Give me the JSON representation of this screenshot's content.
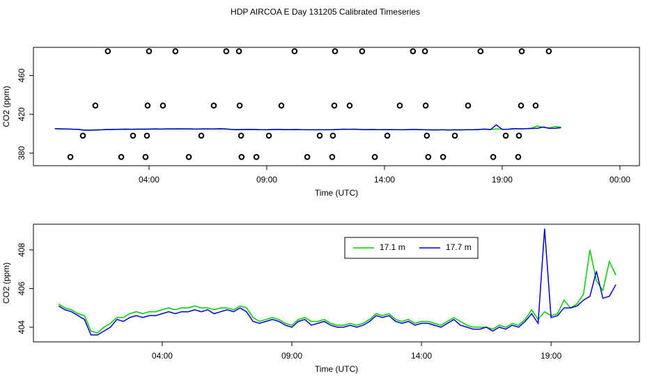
{
  "chart_data": [
    {
      "type": "scatter",
      "title": "HDP AIRCOA E  Day 131205  Calibrated Timeseries",
      "x_label": "Time (UTC)",
      "y_label": "CO2 (ppm)",
      "xlim": [
        -0.91,
        24.83
      ],
      "ylim": [
        367,
        489
      ],
      "xticks": [
        {
          "value": 4,
          "label": "04:00"
        },
        {
          "value": 9,
          "label": "09:00"
        },
        {
          "value": 14,
          "label": "14:00"
        },
        {
          "value": 19,
          "label": "19:00"
        },
        {
          "value": 24,
          "label": "00:00"
        }
      ],
      "yticks": [
        380,
        420,
        460
      ],
      "series": [
        {
          "color": "#000000",
          "x": [
            2.25,
            4.0,
            5.12,
            7.28,
            7.82,
            10.18,
            11.9,
            13.05,
            15.21,
            15.72,
            18.08,
            19.83,
            20.98,
            1.72,
            3.94,
            4.59,
            6.75,
            7.85,
            9.62,
            11.87,
            12.52,
            14.65,
            15.75,
            17.55,
            19.8,
            20.42,
            1.19,
            3.32,
            3.91,
            6.22,
            7.91,
            9.09,
            11.25,
            11.81,
            14.12,
            15.8,
            16.99,
            19.15,
            19.71,
            0.66,
            2.82,
            3.85,
            5.69,
            7.93,
            8.56,
            10.72,
            11.78,
            13.59,
            15.86,
            16.49,
            18.62,
            19.68
          ],
          "values": [
            485,
            485,
            485,
            485,
            485,
            485,
            485,
            485,
            485,
            485,
            485,
            485,
            485,
            429,
            429,
            429,
            429,
            429,
            429,
            429,
            429,
            429,
            429,
            429,
            429,
            429,
            398,
            398,
            398,
            398,
            398,
            398,
            398,
            398,
            398,
            398,
            398,
            398,
            398,
            376,
            376,
            376,
            376,
            376,
            376,
            376,
            376,
            376,
            376,
            376,
            376,
            376
          ]
        }
      ]
    },
    {
      "type": "line",
      "x_label": "Time (UTC)",
      "y_label": "CO2 (ppm)",
      "xlim": [
        -0.97,
        22.41
      ],
      "ylim": [
        403.24,
        409.33
      ],
      "xticks": [
        {
          "value": 4,
          "label": "04:00"
        },
        {
          "value": 9,
          "label": "09:00"
        },
        {
          "value": 14,
          "label": "14:00"
        },
        {
          "value": 19,
          "label": "19:00"
        }
      ],
      "yticks": [
        404,
        406,
        408
      ],
      "legend": "top",
      "x": [
        0,
        0.25,
        0.5,
        0.75,
        1,
        1.25,
        1.5,
        1.75,
        2,
        2.25,
        2.5,
        2.75,
        3,
        3.25,
        3.5,
        3.75,
        4,
        4.25,
        4.5,
        4.75,
        5,
        5.25,
        5.5,
        5.75,
        6,
        6.25,
        6.5,
        6.75,
        7,
        7.25,
        7.5,
        7.75,
        8,
        8.25,
        8.5,
        8.75,
        9,
        9.25,
        9.5,
        9.75,
        10,
        10.25,
        10.5,
        10.75,
        11,
        11.25,
        11.5,
        11.75,
        12,
        12.25,
        12.5,
        12.75,
        13,
        13.25,
        13.5,
        13.75,
        14,
        14.25,
        14.5,
        14.75,
        15,
        15.25,
        15.5,
        15.75,
        16,
        16.25,
        16.5,
        16.75,
        17,
        17.25,
        17.5,
        17.75,
        18,
        18.25,
        18.5,
        18.75,
        19,
        19.25,
        19.5,
        19.75,
        20,
        20.25,
        20.5,
        20.75,
        21,
        21.25,
        21.5
      ],
      "series": [
        {
          "name": "17.1 m",
          "color": "#00cc00",
          "values": [
            405.2,
            405.0,
            404.9,
            404.7,
            404.6,
            403.8,
            403.7,
            404.0,
            404.2,
            404.5,
            404.5,
            404.7,
            404.8,
            404.7,
            404.8,
            404.8,
            404.9,
            405.0,
            404.9,
            405.0,
            405.0,
            405.1,
            405.0,
            405.0,
            404.9,
            405.0,
            405.0,
            404.9,
            405.1,
            405.0,
            404.5,
            404.3,
            404.4,
            404.5,
            404.4,
            404.2,
            404.1,
            404.4,
            404.5,
            404.3,
            404.3,
            404.4,
            404.2,
            404.1,
            404.1,
            404.2,
            404.1,
            404.2,
            404.4,
            404.7,
            404.6,
            404.7,
            404.4,
            404.3,
            404.4,
            404.2,
            404.3,
            404.3,
            404.2,
            404.1,
            404.3,
            404.5,
            404.3,
            404.1,
            404.0,
            404.0,
            404.0,
            403.9,
            404.1,
            404.0,
            404.2,
            404.1,
            404.4,
            404.9,
            404.4,
            404.8,
            404.6,
            404.7,
            405.4,
            405.0,
            405.2,
            405.7,
            408.0,
            406.4,
            405.9,
            407.4,
            406.7
          ]
        },
        {
          "name": "17.7 m",
          "color": "#0000cc",
          "values": [
            405.1,
            404.9,
            404.8,
            404.6,
            404.4,
            403.6,
            403.6,
            403.8,
            404.0,
            404.4,
            404.3,
            404.5,
            404.6,
            404.5,
            404.6,
            404.6,
            404.7,
            404.8,
            404.7,
            404.8,
            404.8,
            404.9,
            404.8,
            404.9,
            404.7,
            404.8,
            404.9,
            404.8,
            405.0,
            404.8,
            404.3,
            404.2,
            404.3,
            404.4,
            404.3,
            404.1,
            404.0,
            404.3,
            404.4,
            404.1,
            404.2,
            404.3,
            404.1,
            404.0,
            404.0,
            404.1,
            404.0,
            404.1,
            404.3,
            404.6,
            404.5,
            404.6,
            404.3,
            404.2,
            404.3,
            404.1,
            404.2,
            404.2,
            404.1,
            404.0,
            404.2,
            404.4,
            404.1,
            404.0,
            403.9,
            403.9,
            404.0,
            403.8,
            404.0,
            403.9,
            404.1,
            404.0,
            404.3,
            404.7,
            404.2,
            409.1,
            404.5,
            404.6,
            405.0,
            405.0,
            405.1,
            405.4,
            405.6,
            406.9,
            405.5,
            405.6,
            406.2
          ]
        }
      ]
    }
  ]
}
